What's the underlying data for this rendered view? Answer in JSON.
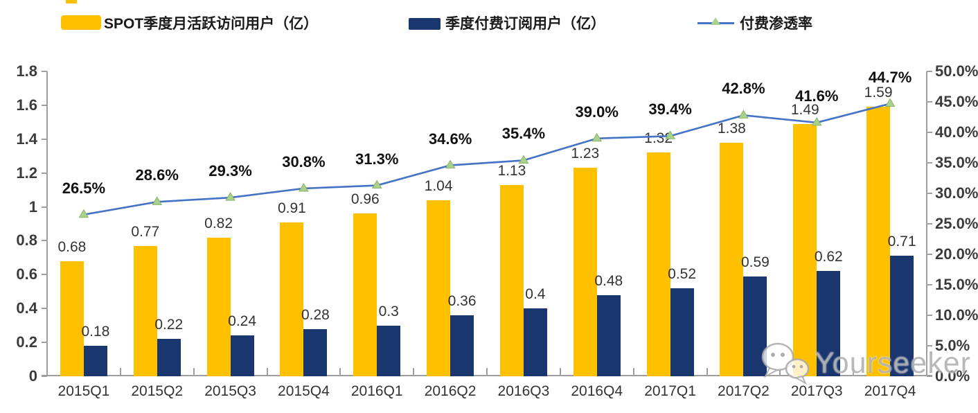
{
  "legend": {
    "mau_label": "SPOT季度月活跃访问用户（亿）",
    "subs_label": "季度付费订阅用户（亿）",
    "penetration_label": "付费渗透率"
  },
  "colors": {
    "mau_bar": "#FFC000",
    "subs_bar": "#1A366E",
    "line": "#4472C4",
    "marker": "#A9D18E",
    "axis": "#9e9e9e"
  },
  "watermark": {
    "text": "Yourseeker",
    "icon": "wechat-icon"
  },
  "chart_data": {
    "type": "bar",
    "subtype": "grouped bars with secondary-axis line",
    "categories": [
      "2015Q1",
      "2015Q2",
      "2015Q3",
      "2015Q4",
      "2016Q1",
      "2016Q2",
      "2016Q3",
      "2016Q4",
      "2017Q1",
      "2017Q2",
      "2017Q3",
      "2017Q4"
    ],
    "series": [
      {
        "name": "SPOT季度月活跃访问用户（亿）",
        "type": "bar",
        "axis": "left",
        "color": "#FFC000",
        "values": [
          0.68,
          0.77,
          0.82,
          0.91,
          0.96,
          1.04,
          1.13,
          1.23,
          1.32,
          1.38,
          1.49,
          1.59
        ],
        "labels": [
          "0.68",
          "0.77",
          "0.82",
          "0.91",
          "0.96",
          "1.04",
          "1.13",
          "1.23",
          "1.32",
          "1.38",
          "1.49",
          "1.59"
        ]
      },
      {
        "name": "季度付费订阅用户（亿）",
        "type": "bar",
        "axis": "left",
        "color": "#1A366E",
        "values": [
          0.18,
          0.22,
          0.24,
          0.28,
          0.3,
          0.36,
          0.4,
          0.48,
          0.52,
          0.59,
          0.62,
          0.71
        ],
        "labels": [
          "0.18",
          "0.22",
          "0.24",
          "0.28",
          "0.3",
          "0.36",
          "0.4",
          "0.48",
          "0.52",
          "0.59",
          "0.62",
          "0.71"
        ]
      },
      {
        "name": "付费渗透率",
        "type": "line",
        "axis": "right",
        "color": "#4472C4",
        "marker_color": "#A9D18E",
        "values": [
          26.5,
          28.6,
          29.3,
          30.8,
          31.3,
          34.6,
          35.4,
          39.0,
          39.4,
          42.8,
          41.6,
          44.7
        ],
        "labels": [
          "26.5%",
          "28.6%",
          "29.3%",
          "30.8%",
          "31.3%",
          "34.6%",
          "35.4%",
          "39.0%",
          "39.4%",
          "42.8%",
          "41.6%",
          "44.7%"
        ]
      }
    ],
    "left_axis": {
      "min": 0,
      "max": 1.8,
      "tick_labels": [
        "1.8",
        "1.6",
        "1.4",
        "1.2",
        "1",
        "0.8",
        "0.6",
        "0.4",
        "0.2",
        "0"
      ],
      "tick_values": [
        1.8,
        1.6,
        1.4,
        1.2,
        1.0,
        0.8,
        0.6,
        0.4,
        0.2,
        0
      ]
    },
    "right_axis": {
      "min": 0,
      "max": 50,
      "tick_labels": [
        "50.0%",
        "45.0%",
        "40.0%",
        "35.0%",
        "30.0%",
        "25.0%",
        "20.0%",
        "15.0%",
        "10.0%",
        "5.0%",
        "0.0%"
      ],
      "tick_values": [
        50,
        45,
        40,
        35,
        30,
        25,
        20,
        15,
        10,
        5,
        0
      ]
    },
    "grid": false,
    "legend_position": "top"
  }
}
